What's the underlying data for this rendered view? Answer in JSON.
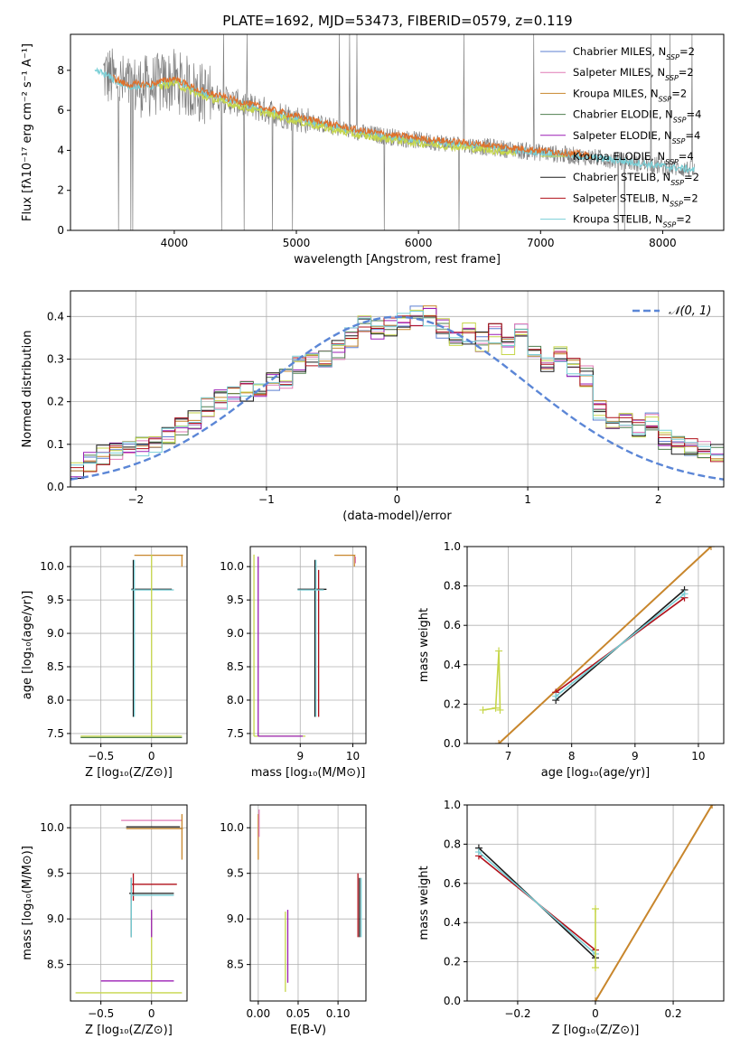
{
  "colors": {
    "Chabrier MILES": "#5b7fd0",
    "Salpeter MILES": "#e07ab6",
    "Kroupa MILES": "#c8862c",
    "Chabrier ELODIE": "#4f7f4f",
    "Salpeter ELODIE": "#9b1fb5",
    "Kroupa ELODIE": "#c6d64a",
    "Chabrier STELIB": "#1a1a1a",
    "Salpeter STELIB": "#b0101a",
    "Kroupa STELIB": "#79cfd6",
    "data": "#808080",
    "orange_model": "#e0702a",
    "normal": "#5b86d6"
  },
  "chart_data": [
    {
      "id": "spectrum",
      "type": "line",
      "title": "PLATE=1692, MJD=53473, FIBERID=0579, z=0.119",
      "xlabel": "wavelength [Angstrom, rest frame]",
      "ylabel": "Flux [fλ10⁻¹⁷ erg cm⁻² s⁻¹ A⁻¹]",
      "xlim": [
        3150,
        8500
      ],
      "ylim": [
        0,
        9.8
      ],
      "xticks": [
        4000,
        5000,
        6000,
        7000,
        8000
      ],
      "yticks": [
        0,
        2,
        4,
        6,
        8
      ],
      "grid": false,
      "legend_position": "top-right",
      "legend": [
        {
          "label": "Chabrier MILES, N",
          "sub": "SSP",
          "suffix": "=2",
          "series": "Chabrier MILES"
        },
        {
          "label": "Salpeter MILES, N",
          "sub": "SSP",
          "suffix": "=2",
          "series": "Salpeter MILES"
        },
        {
          "label": "Kroupa MILES, N",
          "sub": "SSP",
          "suffix": "=2",
          "series": "Kroupa MILES"
        },
        {
          "label": "Chabrier ELODIE, N",
          "sub": "SSP",
          "suffix": "=4",
          "series": "Chabrier ELODIE"
        },
        {
          "label": "Salpeter ELODIE, N",
          "sub": "SSP",
          "suffix": "=4",
          "series": "Salpeter ELODIE"
        },
        {
          "label": "Kroupa ELODIE, N",
          "sub": "SSP",
          "suffix": "=4",
          "series": "Kroupa ELODIE"
        },
        {
          "label": "Chabrier STELIB, N",
          "sub": "SSP",
          "suffix": "=2",
          "series": "Chabrier STELIB"
        },
        {
          "label": "Salpeter STELIB, N",
          "sub": "SSP",
          "suffix": "=2",
          "series": "Salpeter STELIB"
        },
        {
          "label": "Kroupa STELIB, N",
          "sub": "SSP",
          "suffix": "=2",
          "series": "Kroupa STELIB"
        }
      ],
      "continuum": {
        "x": [
          3400,
          3600,
          3800,
          4000,
          4200,
          4500,
          5000,
          5500,
          6000,
          6500,
          7000,
          7500,
          8000,
          8300
        ],
        "y": [
          7.9,
          7.2,
          7.2,
          7.5,
          6.9,
          6.4,
          5.6,
          4.9,
          4.5,
          4.2,
          3.9,
          3.6,
          3.2,
          3.0
        ]
      },
      "data_range": [
        3420,
        8260
      ],
      "model_ranges": {
        "Kroupa STELIB": [
          3350,
          8260
        ],
        "orange_model": [
          3500,
          7420
        ],
        "Kroupa ELODIE": [
          3880,
          6800
        ]
      }
    },
    {
      "id": "residuals",
      "type": "line",
      "xlabel": "(data-model)/error",
      "ylabel": "Normed distribution",
      "xlim": [
        -2.5,
        2.5
      ],
      "ylim": [
        0,
        0.46
      ],
      "xticks": [
        -2,
        -1,
        0,
        1,
        2
      ],
      "yticks": [
        0.0,
        0.1,
        0.2,
        0.3,
        0.4
      ],
      "grid": true,
      "legend_position": "top-right",
      "legend": [
        {
          "label": "𝒩(0, 1)",
          "series": "normal"
        }
      ],
      "bin_width": 0.1,
      "histogram": [
        0.04,
        0.06,
        0.075,
        0.085,
        0.085,
        0.095,
        0.105,
        0.115,
        0.14,
        0.16,
        0.19,
        0.205,
        0.21,
        0.225,
        0.235,
        0.25,
        0.255,
        0.285,
        0.3,
        0.305,
        0.32,
        0.35,
        0.38,
        0.37,
        0.375,
        0.39,
        0.4,
        0.4,
        0.37,
        0.35,
        0.36,
        0.34,
        0.36,
        0.33,
        0.36,
        0.32,
        0.29,
        0.31,
        0.28,
        0.26,
        0.18,
        0.16,
        0.15,
        0.135,
        0.15,
        0.11,
        0.1,
        0.09,
        0.09,
        0.08,
        0.065,
        0.06,
        0.055,
        0.055,
        0.05,
        0.05,
        0.045,
        0.04,
        0.035,
        0.035
      ]
    },
    {
      "id": "age_vs_Z",
      "type": "scatter",
      "xlabel": "Z [log₁₀(Z/Z⊙)]",
      "ylabel": "age  [log₁₀(age/yr)]",
      "xlim": [
        -0.8,
        0.35
      ],
      "ylim": [
        7.35,
        10.3
      ],
      "xticks": [
        -0.5,
        0.0
      ],
      "yticks": [
        7.5,
        8.0,
        8.5,
        9.0,
        9.5,
        10.0
      ],
      "grid": true
    },
    {
      "id": "age_vs_mass",
      "type": "scatter",
      "xlabel": "mass [log₁₀(M/M⊙)]",
      "ylabel": "",
      "xlim": [
        8.05,
        10.25
      ],
      "ylim": [
        7.35,
        10.3
      ],
      "xticks": [
        9,
        10
      ],
      "yticks": [
        7.5,
        8.0,
        8.5,
        9.0,
        9.5,
        10.0
      ],
      "grid": true
    },
    {
      "id": "weight_vs_age",
      "type": "line",
      "xlabel": "age  [log₁₀(age/yr)]",
      "ylabel": "mass weight",
      "xlim": [
        6.35,
        10.4
      ],
      "ylim": [
        0,
        1
      ],
      "xticks": [
        7,
        8,
        9,
        10
      ],
      "yticks": [
        0.0,
        0.2,
        0.4,
        0.6,
        0.8,
        1.0
      ],
      "grid": true
    },
    {
      "id": "mass_vs_Z",
      "type": "scatter",
      "xlabel": "Z [log₁₀(Z/Z⊙)]",
      "ylabel": "mass [log₁₀(M/M⊙)]",
      "xlim": [
        -0.8,
        0.35
      ],
      "ylim": [
        8.1,
        10.25
      ],
      "xticks": [
        -0.5,
        0.0
      ],
      "yticks": [
        8.5,
        9.0,
        9.5,
        10.0
      ],
      "grid": true
    },
    {
      "id": "mass_vs_ebv",
      "type": "scatter",
      "xlabel": "E(B-V)",
      "ylabel": "",
      "xlim": [
        -0.01,
        0.135
      ],
      "ylim": [
        8.1,
        10.25
      ],
      "xticks": [
        0.0,
        0.05,
        0.1
      ],
      "xticklabels": [
        "0.00",
        "0.05",
        "0.10"
      ],
      "yticks": [
        8.5,
        9.0,
        9.5,
        10.0
      ],
      "grid": true
    },
    {
      "id": "weight_vs_Z",
      "type": "line",
      "xlabel": "Z [log₁₀(Z/Z⊙)]",
      "ylabel": "mass weight",
      "xlim": [
        -0.33,
        0.33
      ],
      "ylim": [
        0,
        1
      ],
      "xticks": [
        -0.2,
        0.0,
        0.2
      ],
      "yticks": [
        0.0,
        0.2,
        0.4,
        0.6,
        0.8,
        1.0
      ],
      "grid": true
    }
  ],
  "segments": {
    "age_vs_Z": [
      {
        "s": "Kroupa MILES",
        "h": [
          [
            -0.17,
            0.31,
            10.17
          ]
        ],
        "v": [
          [
            0.3,
            10.0,
            10.18
          ]
        ]
      },
      {
        "s": "Chabrier STELIB",
        "h": [
          [
            -0.2,
            0.2,
            9.66
          ]
        ],
        "v": [
          [
            -0.18,
            7.75,
            10.1
          ]
        ]
      },
      {
        "s": "Kroupa STELIB",
        "h": [
          [
            -0.2,
            0.22,
            9.65
          ]
        ],
        "v": [
          [
            -0.17,
            7.75,
            10.1
          ]
        ]
      },
      {
        "s": "Kroupa ELODIE",
        "h": [
          [
            -0.7,
            0.3,
            7.46
          ]
        ],
        "v": [
          [
            0.0,
            7.46,
            10.18
          ]
        ]
      },
      {
        "s": "Chabrier ELODIE",
        "h": [
          [
            -0.7,
            0.3,
            7.44
          ]
        ],
        "v": []
      }
    ],
    "age_vs_mass": [
      {
        "s": "Kroupa MILES",
        "h": [
          [
            9.65,
            10.05,
            10.17
          ]
        ],
        "v": [
          [
            10.03,
            10.0,
            10.17
          ]
        ]
      },
      {
        "s": "Salpeter MILES",
        "h": [],
        "v": [
          [
            10.05,
            10.05,
            10.15
          ]
        ]
      },
      {
        "s": "Chabrier STELIB",
        "h": [
          [
            8.95,
            9.5,
            9.66
          ]
        ],
        "v": [
          [
            9.28,
            7.75,
            10.1
          ]
        ]
      },
      {
        "s": "Salpeter STELIB",
        "h": [],
        "v": [
          [
            9.35,
            7.75,
            9.95
          ]
        ]
      },
      {
        "s": "Kroupa STELIB",
        "h": [
          [
            8.95,
            9.45,
            9.65
          ]
        ],
        "v": [
          [
            9.3,
            7.75,
            10.1
          ]
        ]
      },
      {
        "s": "Kroupa ELODIE",
        "h": [
          [
            8.12,
            9.1,
            7.46
          ]
        ],
        "v": [
          [
            8.12,
            7.46,
            10.18
          ]
        ]
      },
      {
        "s": "Salpeter ELODIE",
        "h": [
          [
            8.2,
            9.05,
            7.46
          ]
        ],
        "v": [
          [
            8.2,
            7.46,
            10.15
          ]
        ]
      }
    ],
    "mass_vs_Z": [
      {
        "s": "Salpeter MILES",
        "h": [
          [
            -0.3,
            0.3,
            10.08
          ]
        ],
        "v": []
      },
      {
        "s": "Kroupa MILES",
        "h": [
          [
            -0.25,
            0.31,
            9.99
          ]
        ],
        "v": [
          [
            0.3,
            9.65,
            10.15
          ]
        ]
      },
      {
        "s": "Chabrier STELIB",
        "h": [
          [
            -0.25,
            0.28,
            10.01
          ]
        ],
        "v": []
      },
      {
        "s": "Salpeter STELIB",
        "h": [
          [
            -0.2,
            0.25,
            9.38
          ]
        ],
        "v": [
          [
            -0.18,
            9.2,
            9.5
          ]
        ]
      },
      {
        "s": "Chabrier STELIB",
        "h": [
          [
            -0.22,
            0.22,
            9.28
          ]
        ],
        "v": [
          [
            -0.2,
            8.8,
            9.45
          ]
        ]
      },
      {
        "s": "Kroupa STELIB",
        "h": [
          [
            -0.2,
            0.22,
            9.26
          ]
        ],
        "v": [
          [
            -0.2,
            8.8,
            9.45
          ]
        ]
      },
      {
        "s": "Kroupa ELODIE",
        "h": [
          [
            -0.75,
            0.3,
            8.19
          ]
        ],
        "v": [
          [
            0.0,
            8.2,
            9.08
          ]
        ]
      },
      {
        "s": "Salpeter ELODIE",
        "h": [
          [
            -0.5,
            0.22,
            8.32
          ]
        ],
        "v": [
          [
            0.0,
            8.8,
            9.1
          ]
        ]
      }
    ],
    "mass_vs_ebv": [
      {
        "s": "Kroupa MILES",
        "h": [],
        "v": [
          [
            0.0,
            9.65,
            10.15
          ]
        ]
      },
      {
        "s": "Salpeter MILES",
        "h": [],
        "v": [
          [
            0.001,
            9.9,
            10.2
          ]
        ]
      },
      {
        "s": "Kroupa ELODIE",
        "h": [],
        "v": [
          [
            0.034,
            8.2,
            9.08
          ]
        ]
      },
      {
        "s": "Salpeter ELODIE",
        "h": [],
        "v": [
          [
            0.037,
            8.3,
            9.1
          ]
        ]
      },
      {
        "s": "Salpeter STELIB",
        "h": [],
        "v": [
          [
            0.125,
            8.8,
            9.5
          ]
        ]
      },
      {
        "s": "Chabrier STELIB",
        "h": [],
        "v": [
          [
            0.127,
            8.8,
            9.45
          ]
        ]
      },
      {
        "s": "Kroupa STELIB",
        "h": [],
        "v": [
          [
            0.129,
            8.8,
            9.45
          ]
        ]
      }
    ]
  },
  "weight_lines": {
    "weight_vs_age": [
      {
        "s": "Kroupa MILES",
        "pts": [
          [
            6.85,
            0.0
          ],
          [
            10.2,
            1.0
          ]
        ],
        "mark": "+"
      },
      {
        "s": "Salpeter STELIB",
        "pts": [
          [
            7.75,
            0.26
          ],
          [
            9.78,
            0.74
          ]
        ],
        "mark": "+"
      },
      {
        "s": "Chabrier STELIB",
        "pts": [
          [
            7.75,
            0.22
          ],
          [
            9.78,
            0.78
          ]
        ],
        "mark": "+"
      },
      {
        "s": "Kroupa STELIB",
        "pts": [
          [
            7.75,
            0.24
          ],
          [
            9.78,
            0.76
          ]
        ],
        "mark": "+"
      },
      {
        "s": "Kroupa ELODIE",
        "pts": [
          [
            6.6,
            0.17
          ],
          [
            6.8,
            0.18
          ],
          [
            6.85,
            0.47
          ],
          [
            6.87,
            0.17
          ]
        ],
        "mark": "+"
      }
    ],
    "weight_vs_Z": [
      {
        "s": "Kroupa MILES",
        "pts": [
          [
            0.0,
            0.0
          ],
          [
            0.3,
            1.0
          ]
        ],
        "mark": "+"
      },
      {
        "s": "Salpeter STELIB",
        "pts": [
          [
            -0.3,
            0.74
          ],
          [
            0.0,
            0.26
          ]
        ],
        "mark": "+"
      },
      {
        "s": "Chabrier STELIB",
        "pts": [
          [
            -0.3,
            0.78
          ],
          [
            0.0,
            0.22
          ]
        ],
        "mark": "+"
      },
      {
        "s": "Kroupa STELIB",
        "pts": [
          [
            -0.3,
            0.76
          ],
          [
            0.0,
            0.24
          ]
        ],
        "mark": "+"
      },
      {
        "s": "Kroupa ELODIE",
        "pts": [
          [
            0.0,
            0.17
          ],
          [
            0.0,
            0.47
          ]
        ],
        "mark": "+"
      }
    ]
  }
}
